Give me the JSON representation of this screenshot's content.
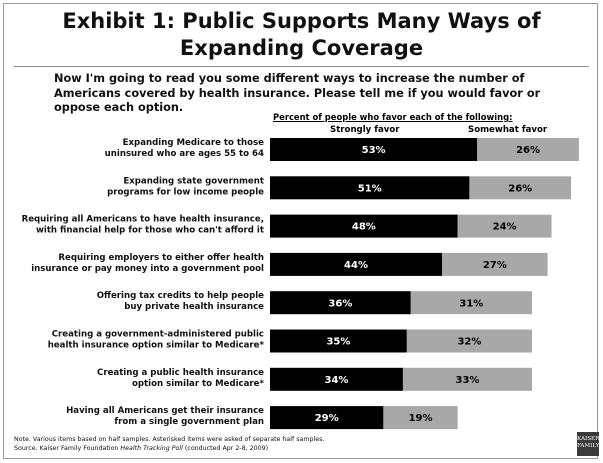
{
  "title_line1": "Exhibit 1: Public Supports Many Ways of",
  "title_line2": "Expanding Coverage",
  "question": "Now I'm going to read you some different ways to increase the number of Americans covered by health insurance.  Please tell me if you would favor or oppose each option.",
  "column_header": "Percent of people who favor each of the following:",
  "note_line1": "Note. Various items based on half samples.  Asterisked items were asked of separate half samples.",
  "note_source_prefix": "Source. Kaiser Family Foundation ",
  "note_source_title": "Health Tracking Poll",
  "note_source_suffix": " (conducted Apr 2-8, 2009)",
  "logo_text": [
    "KAISER",
    "FAMILY"
  ],
  "colors": {
    "strongly": "#000000",
    "somewhat": "#a8a8a8",
    "strongly_text": "#ffffff",
    "somewhat_text": "#000000"
  },
  "chart_data": {
    "type": "bar",
    "orientation": "horizontal",
    "stacked": true,
    "series": [
      {
        "name": "Strongly favor",
        "values": [
          53,
          51,
          48,
          44,
          36,
          35,
          34,
          29
        ]
      },
      {
        "name": "Somewhat favor",
        "values": [
          26,
          26,
          24,
          27,
          31,
          32,
          33,
          19
        ]
      }
    ],
    "categories": [
      [
        "Expanding Medicare to those",
        "uninsured who are ages 55 to 64"
      ],
      [
        "Expanding state government",
        "programs for low income people"
      ],
      [
        "Requiring all Americans to have health insurance,",
        "with financial help for those who can't afford it"
      ],
      [
        "Requiring employers to either offer health",
        "insurance or pay money into a government pool"
      ],
      [
        "Offering tax credits to help people",
        "buy private health insurance"
      ],
      [
        "Creating a government-administered public",
        "health insurance option similar to Medicare*"
      ],
      [
        "Creating a public health insurance",
        "option similar to Medicare*"
      ],
      [
        "Having all Americans get their insurance",
        "from a single government plan"
      ]
    ],
    "value_suffix": "%",
    "xlim": [
      0,
      79
    ],
    "grid": false,
    "legend": "top"
  }
}
